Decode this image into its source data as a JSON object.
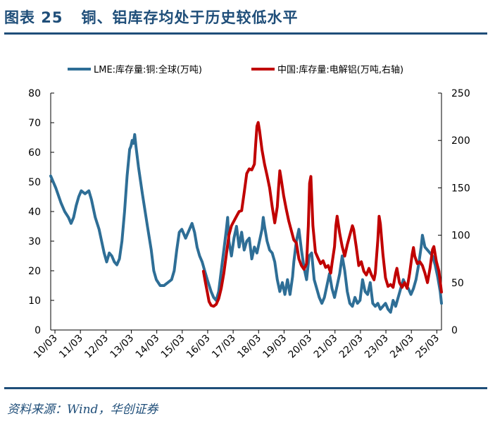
{
  "header": {
    "fig_label": "图表 25",
    "title": "铜、铝库存均处于历史较低水平"
  },
  "footer": {
    "source": "资料来源：Wind，华创证券"
  },
  "colors": {
    "title_blue": "#1f4e79",
    "series_copper": "#2e6e96",
    "series_aluminium": "#c00000"
  },
  "chart_data": {
    "type": "line",
    "x_tick_labels": [
      "10/03",
      "11/03",
      "12/03",
      "13/03",
      "14/03",
      "15/03",
      "16/03",
      "17/03",
      "18/03",
      "19/03",
      "20/03",
      "21/03",
      "22/03",
      "23/03",
      "24/03",
      "25/03"
    ],
    "x_range": [
      2010.0,
      2025.35
    ],
    "y_left": {
      "ticks": [
        "0",
        "10",
        "20",
        "30",
        "40",
        "50",
        "60",
        "70",
        "80"
      ],
      "range": [
        0,
        80
      ]
    },
    "y_right": {
      "ticks": [
        "0",
        "50",
        "100",
        "150",
        "200",
        "250"
      ],
      "range": [
        0,
        250
      ]
    },
    "legend_position": "top",
    "series": [
      {
        "name": "LME:库存量:铜:全球(万吨)",
        "axis": "left",
        "color": "#2e6e96",
        "points": [
          [
            2010.0,
            52
          ],
          [
            2010.2,
            48
          ],
          [
            2010.4,
            43
          ],
          [
            2010.55,
            40
          ],
          [
            2010.7,
            38
          ],
          [
            2010.8,
            36
          ],
          [
            2010.9,
            38
          ],
          [
            2011.0,
            42
          ],
          [
            2011.1,
            45
          ],
          [
            2011.2,
            47
          ],
          [
            2011.35,
            46
          ],
          [
            2011.5,
            47
          ],
          [
            2011.6,
            44
          ],
          [
            2011.75,
            38
          ],
          [
            2011.9,
            34
          ],
          [
            2012.0,
            30
          ],
          [
            2012.1,
            26
          ],
          [
            2012.2,
            23
          ],
          [
            2012.3,
            26
          ],
          [
            2012.4,
            25
          ],
          [
            2012.5,
            23
          ],
          [
            2012.6,
            22
          ],
          [
            2012.7,
            24
          ],
          [
            2012.8,
            30
          ],
          [
            2012.9,
            40
          ],
          [
            2013.0,
            52
          ],
          [
            2013.1,
            61
          ],
          [
            2013.15,
            62
          ],
          [
            2013.2,
            64
          ],
          [
            2013.25,
            63
          ],
          [
            2013.3,
            66
          ],
          [
            2013.35,
            62
          ],
          [
            2013.45,
            55
          ],
          [
            2013.6,
            46
          ],
          [
            2013.8,
            35
          ],
          [
            2013.95,
            27
          ],
          [
            2014.05,
            20
          ],
          [
            2014.15,
            17
          ],
          [
            2014.3,
            15
          ],
          [
            2014.45,
            15
          ],
          [
            2014.6,
            16
          ],
          [
            2014.75,
            17
          ],
          [
            2014.85,
            20
          ],
          [
            2014.95,
            27
          ],
          [
            2015.05,
            33
          ],
          [
            2015.15,
            34
          ],
          [
            2015.3,
            31
          ],
          [
            2015.45,
            34
          ],
          [
            2015.55,
            36
          ],
          [
            2015.65,
            33
          ],
          [
            2015.75,
            28
          ],
          [
            2015.85,
            25
          ],
          [
            2015.95,
            23
          ],
          [
            2016.05,
            20
          ],
          [
            2016.15,
            17
          ],
          [
            2016.3,
            13
          ],
          [
            2016.4,
            11
          ],
          [
            2016.5,
            10
          ],
          [
            2016.6,
            13
          ],
          [
            2016.7,
            20
          ],
          [
            2016.8,
            27
          ],
          [
            2016.9,
            34
          ],
          [
            2016.95,
            38
          ],
          [
            2017.0,
            30
          ],
          [
            2017.1,
            25
          ],
          [
            2017.2,
            31
          ],
          [
            2017.3,
            35
          ],
          [
            2017.4,
            28
          ],
          [
            2017.5,
            33
          ],
          [
            2017.6,
            27
          ],
          [
            2017.7,
            30
          ],
          [
            2017.8,
            31
          ],
          [
            2017.9,
            24
          ],
          [
            2018.0,
            28
          ],
          [
            2018.1,
            26
          ],
          [
            2018.2,
            30
          ],
          [
            2018.3,
            34
          ],
          [
            2018.35,
            38
          ],
          [
            2018.4,
            35
          ],
          [
            2018.5,
            30
          ],
          [
            2018.6,
            27
          ],
          [
            2018.7,
            26
          ],
          [
            2018.8,
            23
          ],
          [
            2018.9,
            17
          ],
          [
            2019.0,
            13
          ],
          [
            2019.1,
            16
          ],
          [
            2019.2,
            12
          ],
          [
            2019.3,
            17
          ],
          [
            2019.4,
            12
          ],
          [
            2019.5,
            18
          ],
          [
            2019.55,
            23
          ],
          [
            2019.65,
            30
          ],
          [
            2019.75,
            34
          ],
          [
            2019.85,
            27
          ],
          [
            2019.95,
            21
          ],
          [
            2020.05,
            17
          ],
          [
            2020.15,
            25
          ],
          [
            2020.25,
            26
          ],
          [
            2020.35,
            17
          ],
          [
            2020.45,
            14
          ],
          [
            2020.55,
            11
          ],
          [
            2020.65,
            9
          ],
          [
            2020.75,
            11
          ],
          [
            2020.85,
            15
          ],
          [
            2020.95,
            19
          ],
          [
            2021.05,
            14
          ],
          [
            2021.15,
            11
          ],
          [
            2021.25,
            15
          ],
          [
            2021.35,
            19
          ],
          [
            2021.45,
            25
          ],
          [
            2021.55,
            20
          ],
          [
            2021.65,
            13
          ],
          [
            2021.75,
            9
          ],
          [
            2021.85,
            8
          ],
          [
            2021.95,
            11
          ],
          [
            2022.05,
            9
          ],
          [
            2022.15,
            10
          ],
          [
            2022.25,
            17
          ],
          [
            2022.35,
            13
          ],
          [
            2022.45,
            12
          ],
          [
            2022.55,
            16
          ],
          [
            2022.65,
            9
          ],
          [
            2022.75,
            8
          ],
          [
            2022.85,
            9
          ],
          [
            2022.95,
            7
          ],
          [
            2023.05,
            8
          ],
          [
            2023.15,
            9
          ],
          [
            2023.25,
            7
          ],
          [
            2023.35,
            6
          ],
          [
            2023.45,
            10
          ],
          [
            2023.55,
            8
          ],
          [
            2023.65,
            11
          ],
          [
            2023.75,
            14
          ],
          [
            2023.85,
            17
          ],
          [
            2023.95,
            15
          ],
          [
            2024.05,
            14
          ],
          [
            2024.15,
            12
          ],
          [
            2024.25,
            14
          ],
          [
            2024.35,
            17
          ],
          [
            2024.45,
            22
          ],
          [
            2024.55,
            28
          ],
          [
            2024.6,
            32
          ],
          [
            2024.7,
            28
          ],
          [
            2024.8,
            27
          ],
          [
            2024.9,
            26
          ],
          [
            2025.0,
            25
          ],
          [
            2025.1,
            22
          ],
          [
            2025.2,
            18
          ],
          [
            2025.3,
            13
          ],
          [
            2025.35,
            9
          ]
        ]
      },
      {
        "name": "中国:库存量:电解铝(万吨,右轴)",
        "axis": "right",
        "color": "#c00000",
        "points": [
          [
            2016.0,
            62
          ],
          [
            2016.08,
            50
          ],
          [
            2016.15,
            40
          ],
          [
            2016.22,
            30
          ],
          [
            2016.3,
            26
          ],
          [
            2016.4,
            25
          ],
          [
            2016.5,
            27
          ],
          [
            2016.6,
            33
          ],
          [
            2016.7,
            44
          ],
          [
            2016.8,
            60
          ],
          [
            2016.9,
            80
          ],
          [
            2017.0,
            100
          ],
          [
            2017.1,
            110
          ],
          [
            2017.2,
            115
          ],
          [
            2017.3,
            120
          ],
          [
            2017.4,
            125
          ],
          [
            2017.5,
            126
          ],
          [
            2017.6,
            145
          ],
          [
            2017.7,
            165
          ],
          [
            2017.8,
            170
          ],
          [
            2017.9,
            169
          ],
          [
            2018.0,
            175
          ],
          [
            2018.05,
            196
          ],
          [
            2018.1,
            215
          ],
          [
            2018.15,
            219
          ],
          [
            2018.2,
            211
          ],
          [
            2018.3,
            190
          ],
          [
            2018.4,
            175
          ],
          [
            2018.5,
            163
          ],
          [
            2018.6,
            150
          ],
          [
            2018.7,
            130
          ],
          [
            2018.8,
            113
          ],
          [
            2018.9,
            130
          ],
          [
            2018.95,
            150
          ],
          [
            2019.0,
            168
          ],
          [
            2019.05,
            160
          ],
          [
            2019.15,
            142
          ],
          [
            2019.25,
            128
          ],
          [
            2019.35,
            115
          ],
          [
            2019.45,
            105
          ],
          [
            2019.55,
            95
          ],
          [
            2019.65,
            92
          ],
          [
            2019.75,
            75
          ],
          [
            2019.85,
            68
          ],
          [
            2019.95,
            64
          ],
          [
            2020.05,
            70
          ],
          [
            2020.12,
            110
          ],
          [
            2020.17,
            155
          ],
          [
            2020.22,
            162
          ],
          [
            2020.3,
            110
          ],
          [
            2020.4,
            82
          ],
          [
            2020.5,
            76
          ],
          [
            2020.6,
            70
          ],
          [
            2020.7,
            73
          ],
          [
            2020.8,
            66
          ],
          [
            2020.9,
            68
          ],
          [
            2021.0,
            60
          ],
          [
            2021.05,
            70
          ],
          [
            2021.15,
            88
          ],
          [
            2021.2,
            110
          ],
          [
            2021.25,
            120
          ],
          [
            2021.35,
            102
          ],
          [
            2021.45,
            88
          ],
          [
            2021.55,
            78
          ],
          [
            2021.65,
            90
          ],
          [
            2021.75,
            100
          ],
          [
            2021.85,
            110
          ],
          [
            2021.9,
            106
          ],
          [
            2022.0,
            88
          ],
          [
            2022.1,
            68
          ],
          [
            2022.2,
            72
          ],
          [
            2022.3,
            62
          ],
          [
            2022.4,
            58
          ],
          [
            2022.5,
            65
          ],
          [
            2022.6,
            58
          ],
          [
            2022.7,
            53
          ],
          [
            2022.75,
            60
          ],
          [
            2022.85,
            95
          ],
          [
            2022.9,
            120
          ],
          [
            2022.95,
            112
          ],
          [
            2023.05,
            80
          ],
          [
            2023.15,
            55
          ],
          [
            2023.25,
            46
          ],
          [
            2023.35,
            48
          ],
          [
            2023.45,
            45
          ],
          [
            2023.55,
            60
          ],
          [
            2023.6,
            65
          ],
          [
            2023.7,
            50
          ],
          [
            2023.8,
            45
          ],
          [
            2023.9,
            50
          ],
          [
            2024.0,
            44
          ],
          [
            2024.1,
            60
          ],
          [
            2024.2,
            80
          ],
          [
            2024.25,
            87
          ],
          [
            2024.3,
            78
          ],
          [
            2024.4,
            70
          ],
          [
            2024.5,
            72
          ],
          [
            2024.6,
            68
          ],
          [
            2024.7,
            60
          ],
          [
            2024.8,
            50
          ],
          [
            2024.9,
            65
          ],
          [
            2025.0,
            85
          ],
          [
            2025.05,
            88
          ],
          [
            2025.15,
            72
          ],
          [
            2025.25,
            62
          ],
          [
            2025.35,
            40
          ]
        ]
      }
    ]
  }
}
